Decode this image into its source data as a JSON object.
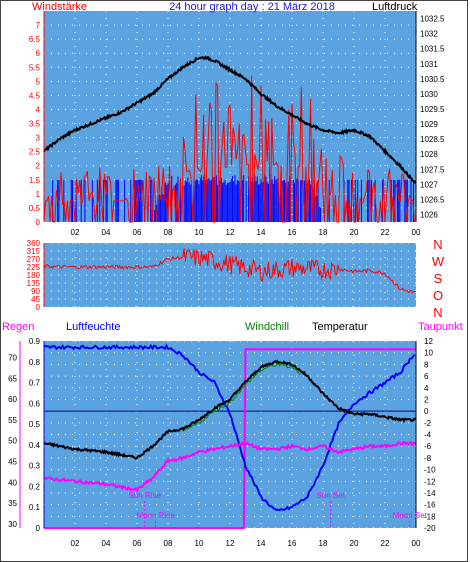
{
  "chart_data": [
    {
      "type": "line",
      "title": "24 hour graph day : 21 März 2018",
      "ylabel_left": "Windstärke",
      "ylabel_right": "Luftdruck",
      "y_left_ticks": [
        "0",
        "0.5",
        "1",
        "1.5",
        "2",
        "2.5",
        "3",
        "3.5",
        "4",
        "4.5",
        "5",
        "5.5",
        "6",
        "6.5",
        "7"
      ],
      "y_right_ticks": [
        "1026",
        "1026.5",
        "1027",
        "1027.5",
        "1028",
        "1028.5",
        "1029",
        "1029.5",
        "1030",
        "1030.5",
        "1031",
        "1031.5",
        "1032",
        "1032.5"
      ],
      "x_ticks": [
        "02",
        "04",
        "06",
        "08",
        "10",
        "12",
        "14",
        "16",
        "18",
        "20",
        "22",
        "00"
      ],
      "ylim_left": [
        0,
        7.5
      ],
      "ylim_right": [
        1025.75,
        1032.75
      ],
      "xlim": [
        0,
        24
      ],
      "grid": true,
      "colors": {
        "background": "#5ba3e0",
        "pressure": "#000000",
        "gust": "#ff0000",
        "wind": "#0000ff",
        "axis_left": "#ff0000",
        "axis_right": "#000000"
      },
      "series": [
        {
          "name": "Luftdruck",
          "axis": "right",
          "x": [
            0,
            1,
            2,
            3,
            4,
            5,
            6,
            7,
            8,
            9,
            10,
            10.5,
            11,
            12,
            13,
            14,
            15,
            16,
            17,
            18,
            19,
            20,
            21,
            22,
            23,
            24
          ],
          "values": [
            1028.1,
            1028.5,
            1028.8,
            1029.0,
            1029.2,
            1029.4,
            1029.7,
            1030.0,
            1030.5,
            1030.9,
            1031.2,
            1031.2,
            1031.1,
            1030.8,
            1030.5,
            1030.0,
            1029.6,
            1029.3,
            1029.0,
            1028.8,
            1028.7,
            1028.8,
            1028.6,
            1028.1,
            1027.6,
            1027.0
          ]
        },
        {
          "name": "Windböen",
          "axis": "left",
          "x": [
            0,
            7,
            8,
            9,
            10,
            11,
            12,
            13,
            14,
            15,
            16,
            17,
            18,
            19,
            20,
            21,
            22,
            23,
            24
          ],
          "values": [
            1.5,
            1.5,
            1.6,
            3.5,
            3.9,
            3.9,
            3.9,
            4.0,
            4.5,
            4.0,
            4.0,
            3.9,
            2.0,
            1.9,
            1.8,
            1.5,
            1.5,
            1.5,
            1.5
          ]
        },
        {
          "name": "Windstärke",
          "axis": "left",
          "x": [
            0,
            7,
            8,
            9,
            10,
            11,
            12,
            13,
            14,
            15,
            16,
            17,
            18,
            19,
            20,
            21,
            22,
            23,
            24
          ],
          "values": [
            0.5,
            0.5,
            1.5,
            1.5,
            1.5,
            1.5,
            1.5,
            1.5,
            1.5,
            1.5,
            1.5,
            1.5,
            0.5,
            0.5,
            0.5,
            0.5,
            0.5,
            0.5,
            0.5
          ]
        }
      ]
    },
    {
      "type": "line",
      "ylabel_right": "N W S O N",
      "y_ticks": [
        "0",
        "45",
        "90",
        "135",
        "180",
        "225",
        "270",
        "315",
        "360"
      ],
      "ylim": [
        0,
        360
      ],
      "xlim": [
        0,
        24
      ],
      "x_ticks": [
        "02",
        "04",
        "06",
        "08",
        "10",
        "12",
        "14",
        "16",
        "18",
        "20",
        "22",
        "00"
      ],
      "grid": true,
      "colors": {
        "line": "#ff0000",
        "axis": "#ff0000",
        "direction_labels": "#ff0000"
      },
      "series": [
        {
          "name": "Windrichtung",
          "x": [
            0,
            1,
            2,
            3,
            4,
            5,
            6,
            7,
            8,
            9,
            10,
            11,
            12,
            13,
            14,
            15,
            16,
            17,
            18,
            19,
            20,
            21,
            22,
            23,
            24
          ],
          "values": [
            230,
            225,
            225,
            225,
            225,
            225,
            225,
            225,
            270,
            280,
            275,
            260,
            240,
            220,
            200,
            210,
            220,
            215,
            210,
            215,
            200,
            205,
            190,
            100,
            80
          ]
        }
      ]
    },
    {
      "type": "line",
      "labels": {
        "regen": "Regen",
        "luftfeuchte": "Luftfeuchte",
        "windchill": "Windchill",
        "temperatur": "Temperatur",
        "taupunkt": "Taupunkt"
      },
      "y_regen_ticks": [
        "30",
        "35",
        "40",
        "45",
        "50",
        "55",
        "60",
        "65",
        "70"
      ],
      "y_humidity_ticks": [
        "0",
        "0.1",
        "0.2",
        "0.3",
        "0.4",
        "0.5",
        "0.6",
        "0.7",
        "0.8",
        "0.9"
      ],
      "y_temp_ticks": [
        "-20",
        "-18",
        "-16",
        "-14",
        "-12",
        "-10",
        "-8",
        "-6",
        "-4",
        "-2",
        "0",
        "2",
        "4",
        "6",
        "8",
        "10",
        "12"
      ],
      "x_ticks": [
        "02",
        "04",
        "06",
        "08",
        "10",
        "12",
        "14",
        "16",
        "18",
        "20",
        "22",
        "00"
      ],
      "ylim_regen": [
        29,
        74
      ],
      "ylim_humidity": [
        0,
        0.9
      ],
      "ylim_temp": [
        -20,
        12
      ],
      "xlim": [
        0,
        24
      ],
      "grid": true,
      "annotations": [
        "Sun Rise",
        "Moon Rise",
        "Sun Set",
        "Moon Set"
      ],
      "colors": {
        "background": "#5ba3e0",
        "temperature": "#000000",
        "humidity": "#0000ff",
        "dew_point": "#ff00ff",
        "rain": "#ff00ff",
        "windchill": "#008000",
        "zero_line": "#000080"
      },
      "series": [
        {
          "name": "Temperatur",
          "axis": "temp",
          "x": [
            0,
            2,
            4,
            5,
            6,
            7,
            8,
            9,
            10,
            11,
            12,
            13,
            14,
            15,
            16,
            17,
            18,
            19,
            20,
            21,
            22,
            23,
            24
          ],
          "values": [
            -5.5,
            -6.5,
            -7.0,
            -7.5,
            -8.0,
            -6.0,
            -3.5,
            -3.0,
            -1.5,
            0.5,
            2.0,
            5.0,
            7.5,
            8.5,
            8.0,
            6.0,
            3.0,
            0.5,
            -0.5,
            -0.5,
            -1.0,
            -1.5,
            -1.5
          ]
        },
        {
          "name": "Luftfeuchte",
          "axis": "humidity",
          "x": [
            0,
            2,
            4,
            5,
            6,
            7,
            7.5,
            8,
            9,
            10,
            11,
            12,
            13,
            14,
            15,
            16,
            17,
            18,
            19,
            20,
            21,
            22,
            23,
            24
          ],
          "values": [
            0.87,
            0.87,
            0.87,
            0.87,
            0.87,
            0.87,
            0.87,
            0.87,
            0.83,
            0.75,
            0.7,
            0.55,
            0.3,
            0.15,
            0.08,
            0.1,
            0.15,
            0.3,
            0.5,
            0.6,
            0.65,
            0.7,
            0.75,
            0.85
          ]
        },
        {
          "name": "Taupunkt",
          "axis": "temp",
          "x": [
            0,
            2,
            4,
            5,
            6,
            7,
            8,
            9,
            10,
            11,
            12,
            13,
            14,
            15,
            16,
            17,
            18,
            19,
            20,
            21,
            22,
            23,
            24
          ],
          "values": [
            -11.5,
            -12.0,
            -12.5,
            -13.0,
            -13.5,
            -11.5,
            -8.5,
            -8.0,
            -7.0,
            -6.5,
            -6.0,
            -5.5,
            -6.5,
            -6.5,
            -6.0,
            -6.5,
            -6.0,
            -7.0,
            -6.5,
            -6.0,
            -6.0,
            -5.5,
            -5.5
          ]
        },
        {
          "name": "Regen",
          "axis": "regen",
          "x": [
            0,
            12.9,
            13.0,
            24
          ],
          "values": [
            29,
            29,
            72,
            72
          ]
        }
      ]
    }
  ]
}
